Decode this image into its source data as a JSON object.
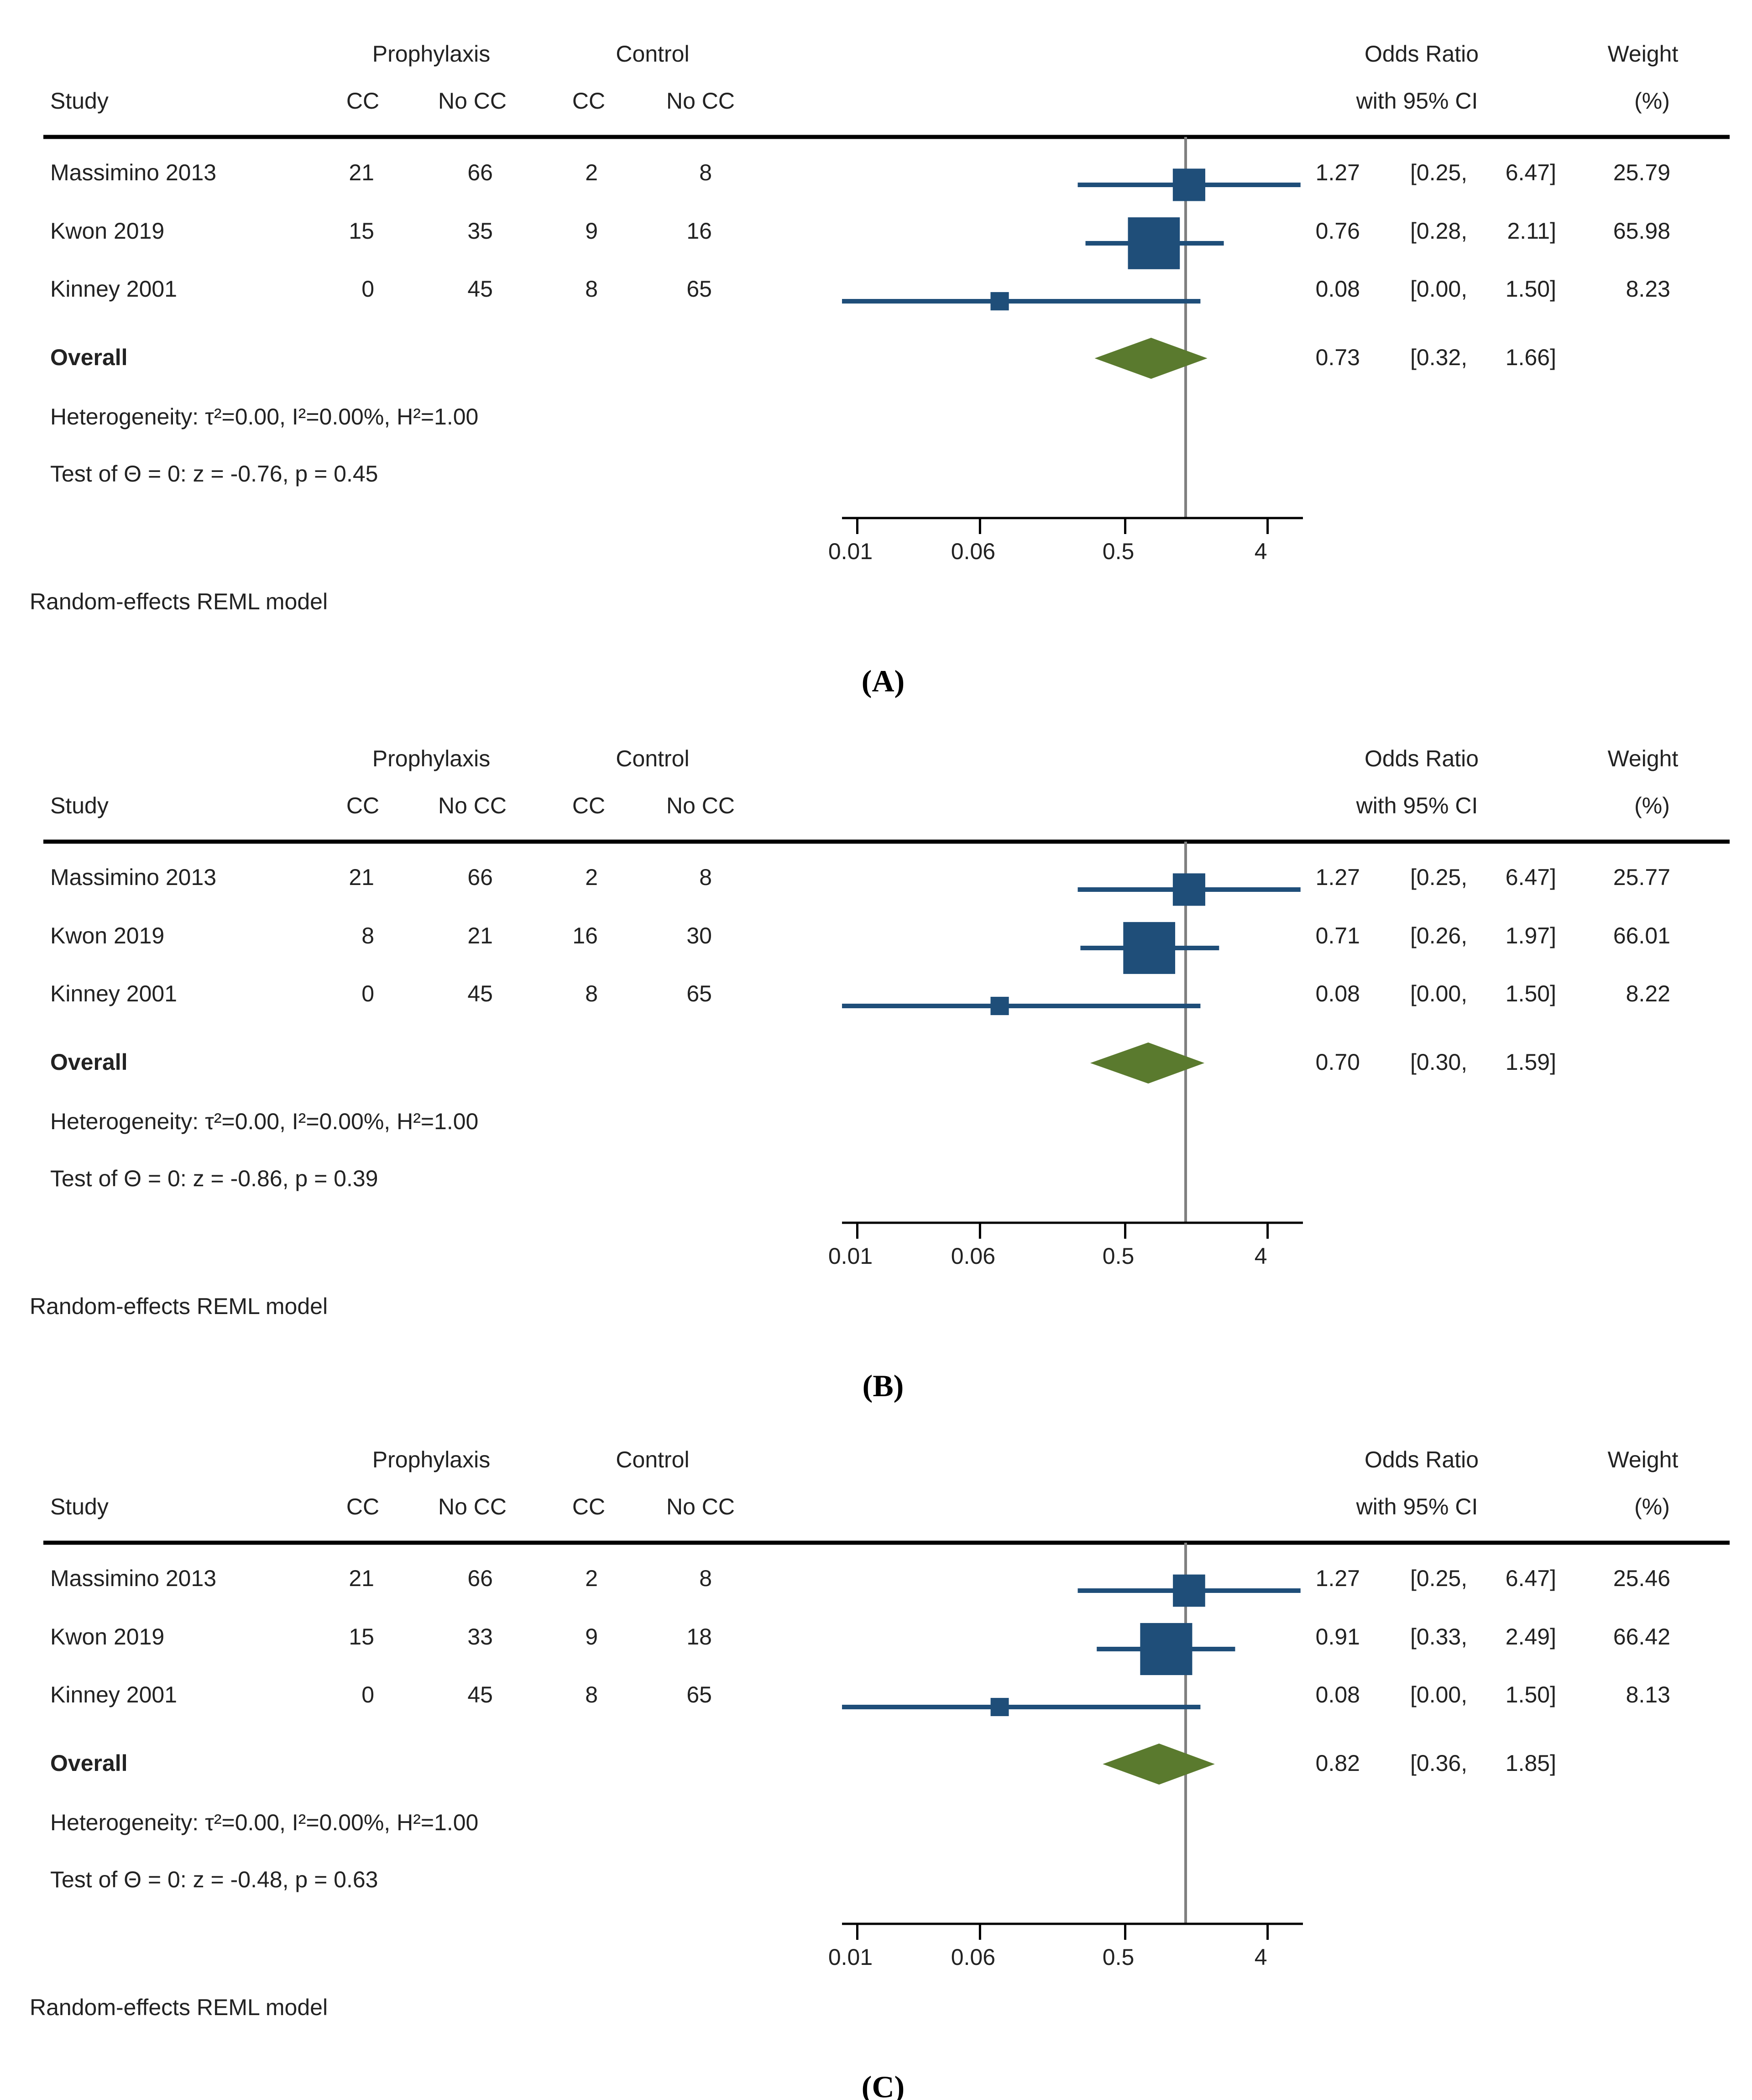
{
  "colors": {
    "marker": "#1f4e79",
    "diamond": "#5a7a2e",
    "null_line": "#808080",
    "rule": "#000000",
    "text": "#222222"
  },
  "column_headers": {
    "group_prophylaxis": "Prophylaxis",
    "group_control": "Control",
    "study": "Study",
    "cc": "CC",
    "no_cc": "No CC",
    "odds_ratio": "Odds Ratio",
    "ci": "with 95% CI",
    "weight": "Weight",
    "weight_unit": "(%)"
  },
  "overall_label": "Overall",
  "model_note": "Random-effects REML model",
  "chart_data": [
    {
      "type": "forest",
      "caption": "(A)",
      "xscale": "log2",
      "xlim": [
        0.008,
        6.7
      ],
      "ticks": [
        0.01,
        0.06,
        0.5,
        4
      ],
      "tick_labels": [
        "0.01",
        "0.06",
        "0.5",
        "4"
      ],
      "studies": [
        {
          "name": "Massimino 2013",
          "p_cc": "21",
          "p_nocc": "66",
          "c_cc": "2",
          "c_nocc": "8",
          "or": 1.27,
          "lo": 0.25,
          "hi": 6.47,
          "or_t": "1.27",
          "lo_t": "[0.25,",
          "hi_t": "6.47]",
          "w": 25.79,
          "w_t": "25.79"
        },
        {
          "name": "Kwon 2019",
          "p_cc": "15",
          "p_nocc": "35",
          "c_cc": "9",
          "c_nocc": "16",
          "or": 0.76,
          "lo": 0.28,
          "hi": 2.11,
          "or_t": "0.76",
          "lo_t": "[0.28,",
          "hi_t": "2.11]",
          "w": 65.98,
          "w_t": "65.98"
        },
        {
          "name": "Kinney 2001",
          "p_cc": "0",
          "p_nocc": "45",
          "c_cc": "8",
          "c_nocc": "65",
          "or": 0.08,
          "lo": 0.0,
          "hi": 1.5,
          "or_t": "0.08",
          "lo_t": "[0.00,",
          "hi_t": "1.50]",
          "w": 8.23,
          "w_t": "8.23"
        }
      ],
      "overall": {
        "or": 0.73,
        "lo": 0.32,
        "hi": 1.66,
        "or_t": "0.73",
        "lo_t": "[0.32,",
        "hi_t": "1.66]"
      },
      "heterogeneity": "Heterogeneity: τ²=0.00, I²=0.00%, H²=1.00",
      "test": "Test of Θ = 0: z = -0.76, p = 0.45"
    },
    {
      "type": "forest",
      "caption": "(B)",
      "xscale": "log2",
      "xlim": [
        0.008,
        6.7
      ],
      "ticks": [
        0.01,
        0.06,
        0.5,
        4
      ],
      "tick_labels": [
        "0.01",
        "0.06",
        "0.5",
        "4"
      ],
      "studies": [
        {
          "name": "Massimino 2013",
          "p_cc": "21",
          "p_nocc": "66",
          "c_cc": "2",
          "c_nocc": "8",
          "or": 1.27,
          "lo": 0.25,
          "hi": 6.47,
          "or_t": "1.27",
          "lo_t": "[0.25,",
          "hi_t": "6.47]",
          "w": 25.77,
          "w_t": "25.77"
        },
        {
          "name": "Kwon 2019",
          "p_cc": "8",
          "p_nocc": "21",
          "c_cc": "16",
          "c_nocc": "30",
          "or": 0.71,
          "lo": 0.26,
          "hi": 1.97,
          "or_t": "0.71",
          "lo_t": "[0.26,",
          "hi_t": "1.97]",
          "w": 66.01,
          "w_t": "66.01"
        },
        {
          "name": "Kinney 2001",
          "p_cc": "0",
          "p_nocc": "45",
          "c_cc": "8",
          "c_nocc": "65",
          "or": 0.08,
          "lo": 0.0,
          "hi": 1.5,
          "or_t": "0.08",
          "lo_t": "[0.00,",
          "hi_t": "1.50]",
          "w": 8.22,
          "w_t": "8.22"
        }
      ],
      "overall": {
        "or": 0.7,
        "lo": 0.3,
        "hi": 1.59,
        "or_t": "0.70",
        "lo_t": "[0.30,",
        "hi_t": "1.59]"
      },
      "heterogeneity": "Heterogeneity: τ²=0.00, I²=0.00%, H²=1.00",
      "test": "Test of Θ = 0: z = -0.86, p = 0.39"
    },
    {
      "type": "forest",
      "caption": "(C)",
      "xscale": "log2",
      "xlim": [
        0.008,
        6.7
      ],
      "ticks": [
        0.01,
        0.06,
        0.5,
        4
      ],
      "tick_labels": [
        "0.01",
        "0.06",
        "0.5",
        "4"
      ],
      "studies": [
        {
          "name": "Massimino 2013",
          "p_cc": "21",
          "p_nocc": "66",
          "c_cc": "2",
          "c_nocc": "8",
          "or": 1.27,
          "lo": 0.25,
          "hi": 6.47,
          "or_t": "1.27",
          "lo_t": "[0.25,",
          "hi_t": "6.47]",
          "w": 25.46,
          "w_t": "25.46"
        },
        {
          "name": "Kwon 2019",
          "p_cc": "15",
          "p_nocc": "33",
          "c_cc": "9",
          "c_nocc": "18",
          "or": 0.91,
          "lo": 0.33,
          "hi": 2.49,
          "or_t": "0.91",
          "lo_t": "[0.33,",
          "hi_t": "2.49]",
          "w": 66.42,
          "w_t": "66.42"
        },
        {
          "name": "Kinney 2001",
          "p_cc": "0",
          "p_nocc": "45",
          "c_cc": "8",
          "c_nocc": "65",
          "or": 0.08,
          "lo": 0.0,
          "hi": 1.5,
          "or_t": "0.08",
          "lo_t": "[0.00,",
          "hi_t": "1.50]",
          "w": 8.13,
          "w_t": "8.13"
        }
      ],
      "overall": {
        "or": 0.82,
        "lo": 0.36,
        "hi": 1.85,
        "or_t": "0.82",
        "lo_t": "[0.36,",
        "hi_t": "1.85]"
      },
      "heterogeneity": "Heterogeneity: τ²=0.00, I²=0.00%, H²=1.00",
      "test": "Test of Θ = 0: z = -0.48, p = 0.63"
    }
  ]
}
